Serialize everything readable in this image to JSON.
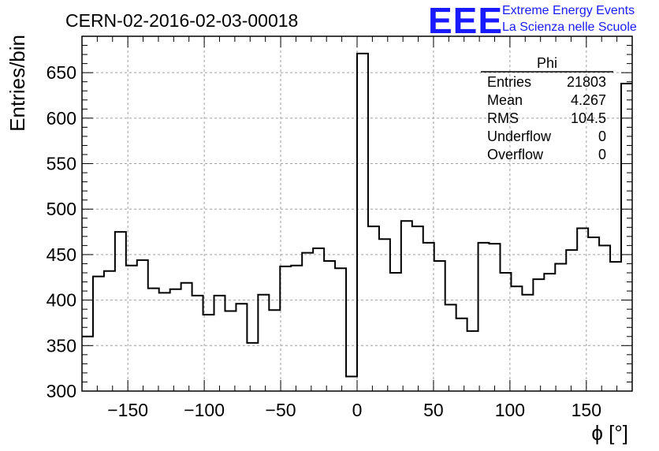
{
  "chart_data": {
    "type": "bar",
    "title": "CERN-02-2016-02-03-00018",
    "xlabel": "ϕ [°]",
    "ylabel": "Entries/bin",
    "xlim": [
      -180,
      180
    ],
    "ylim": [
      300,
      690
    ],
    "bin_width": 7.2,
    "x_ticks": [
      -150,
      -100,
      -50,
      0,
      50,
      100,
      150
    ],
    "y_ticks": [
      300,
      350,
      400,
      450,
      500,
      550,
      600,
      650
    ],
    "grid": true,
    "values": [
      360,
      426,
      432,
      475,
      438,
      444,
      413,
      408,
      412,
      419,
      405,
      384,
      405,
      388,
      396,
      353,
      406,
      389,
      437,
      438,
      452,
      457,
      443,
      435,
      316,
      671,
      481,
      467,
      430,
      487,
      481,
      463,
      443,
      395,
      380,
      366,
      463,
      462,
      430,
      415,
      406,
      423,
      429,
      440,
      455,
      479,
      469,
      460,
      442,
      638
    ]
  },
  "stats_box": {
    "title": "Phi",
    "rows": [
      {
        "label": "Entries",
        "value": "21803"
      },
      {
        "label": "Mean",
        "value": "4.267"
      },
      {
        "label": "RMS",
        "value": "104.5"
      },
      {
        "label": "Underflow",
        "value": "0"
      },
      {
        "label": "Overflow",
        "value": "0"
      }
    ]
  },
  "logo": {
    "mark": "EEE",
    "line1": "Extreme Energy Events",
    "line2": "La Scienza nelle Scuole",
    "color": "#1a1aff"
  }
}
